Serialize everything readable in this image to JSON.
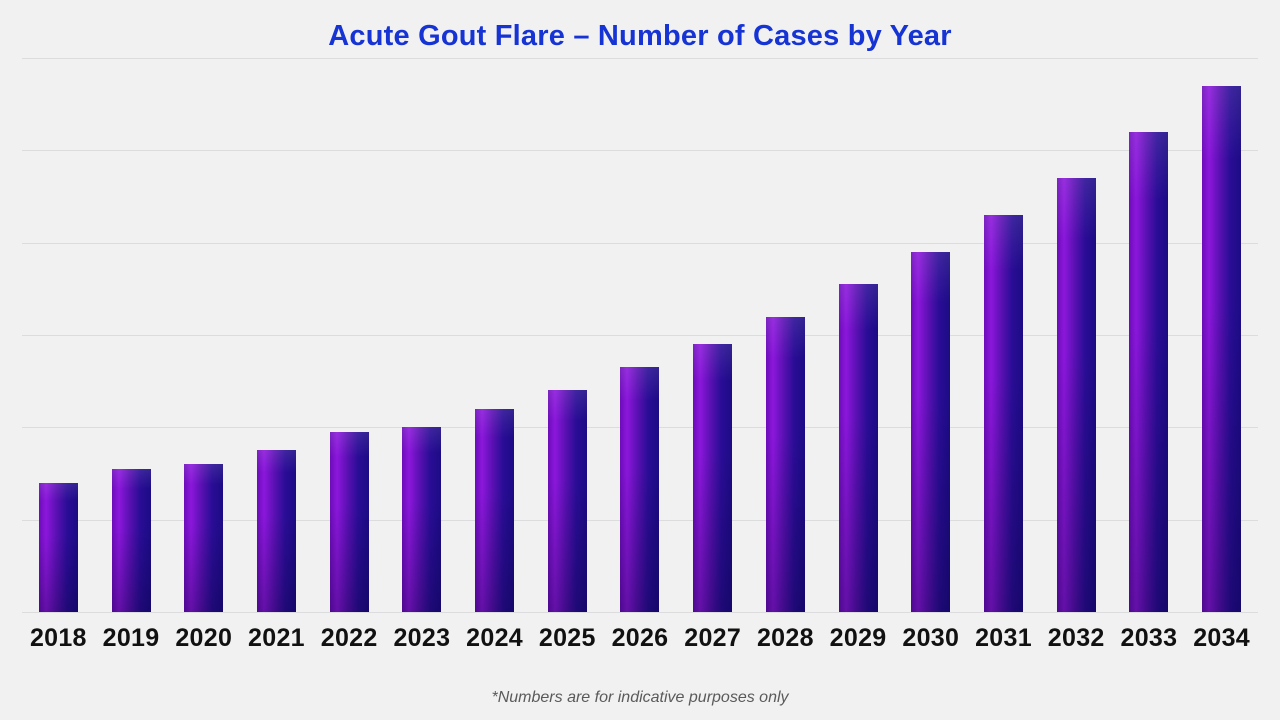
{
  "title": "Acute Gout Flare – Number of Cases by Year",
  "footnote": "*Numbers are for indicative purposes only",
  "chart_data": {
    "type": "bar",
    "title": "Acute Gout Flare – Number of Cases by Year",
    "categories": [
      "2018",
      "2019",
      "2020",
      "2021",
      "2022",
      "2023",
      "2024",
      "2025",
      "2026",
      "2027",
      "2028",
      "2029",
      "2030",
      "2031",
      "2032",
      "2033",
      "2034"
    ],
    "values": [
      140,
      155,
      160,
      175,
      195,
      200,
      220,
      240,
      265,
      290,
      320,
      355,
      390,
      430,
      470,
      520,
      570
    ],
    "xlabel": "",
    "ylabel": "",
    "ylim": [
      0,
      600
    ],
    "y_axis_labels_visible": false,
    "gridlines": "horizontal",
    "gridline_count": 6,
    "legend": "none",
    "note": "y-axis is unlabeled; values estimated from gridline spacing (one gridline interval = 100 units)"
  },
  "colors": {
    "background": "#f1f1f2",
    "title": "#1633d4",
    "gridline": "#dcdcde",
    "axis_label": "#111111",
    "footnote": "#5a5a5a",
    "bar_gradient_left": "#6b0db8",
    "bar_gradient_highlight": "#8c17dc",
    "bar_gradient_mid": "#5a10b2",
    "bar_gradient_deep": "#2a0d96",
    "bar_gradient_right": "#1c0b84"
  }
}
